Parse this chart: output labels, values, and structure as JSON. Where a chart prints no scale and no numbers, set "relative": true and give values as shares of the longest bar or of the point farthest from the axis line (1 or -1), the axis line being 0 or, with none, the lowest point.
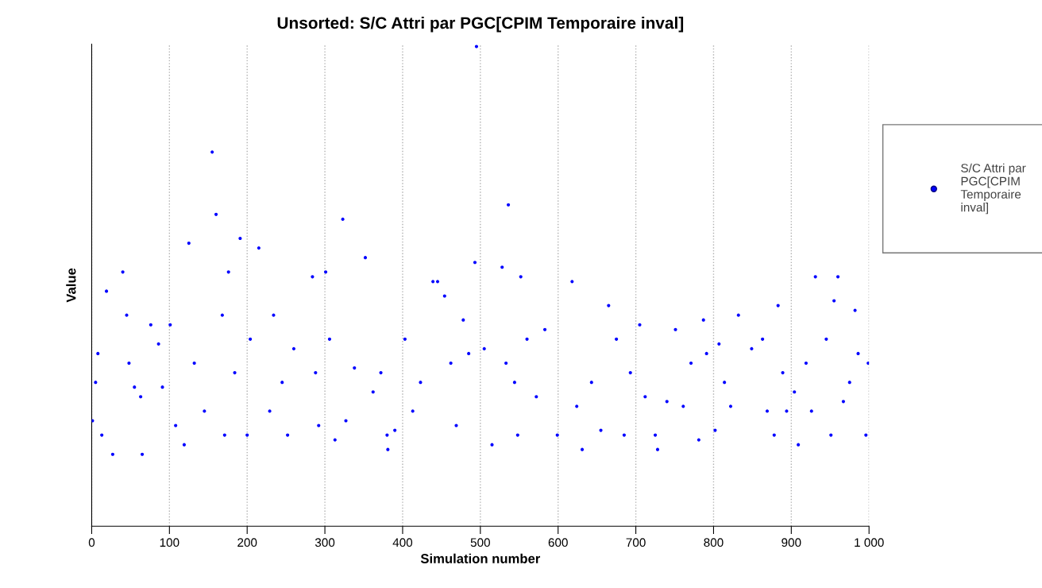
{
  "chart_data": {
    "type": "scatter",
    "title": "Unsorted: S/C Attri par PGC[CPIM Temporaire inval]",
    "xlabel": "Simulation number",
    "ylabel": "Value",
    "relative": true,
    "xlim": [
      0,
      1000
    ],
    "xticks": [
      0,
      100,
      200,
      300,
      400,
      500,
      600,
      700,
      800,
      900,
      {
        "value": 1000,
        "label": "1 000"
      }
    ],
    "grid": "x",
    "legend": "right",
    "marker": "circle",
    "series": [
      {
        "name": "S/C Attri par PGC[CPIM Temporaire inval]",
        "color": "#0000ff",
        "x": [
          1,
          5,
          8,
          13,
          19,
          27,
          40,
          45,
          48,
          55,
          63,
          65,
          76,
          86,
          91,
          101,
          108,
          119,
          125,
          132,
          145,
          155,
          160,
          168,
          171,
          176,
          184,
          191,
          200,
          204,
          215,
          229,
          234,
          245,
          252,
          260,
          284,
          288,
          292,
          301,
          306,
          313,
          323,
          327,
          338,
          352,
          362,
          372,
          380,
          381,
          390,
          403,
          413,
          423,
          439,
          445,
          454,
          462,
          469,
          478,
          485,
          493,
          495,
          505,
          515,
          528,
          533,
          536,
          544,
          548,
          552,
          560,
          572,
          583,
          599,
          618,
          624,
          631,
          643,
          655,
          665,
          675,
          685,
          693,
          705,
          712,
          725,
          728,
          740,
          751,
          761,
          771,
          781,
          787,
          791,
          802,
          807,
          814,
          822,
          832,
          849,
          863,
          869,
          878,
          883,
          889,
          894,
          904,
          909,
          919,
          926,
          931,
          945,
          951,
          955,
          960,
          967,
          975,
          982,
          986,
          996,
          999
        ],
        "values": [
          0.22,
          0.3,
          0.36,
          0.19,
          0.49,
          0.15,
          0.53,
          0.44,
          0.34,
          0.29,
          0.27,
          0.15,
          0.42,
          0.38,
          0.29,
          0.42,
          0.21,
          0.17,
          0.59,
          0.34,
          0.24,
          0.78,
          0.65,
          0.44,
          0.19,
          0.53,
          0.32,
          0.6,
          0.19,
          0.39,
          0.58,
          0.24,
          0.44,
          0.3,
          0.19,
          0.37,
          0.52,
          0.32,
          0.21,
          0.53,
          0.39,
          0.18,
          0.64,
          0.22,
          0.33,
          0.56,
          0.28,
          0.32,
          0.19,
          0.16,
          0.2,
          0.39,
          0.24,
          0.3,
          0.51,
          0.51,
          0.48,
          0.34,
          0.21,
          0.43,
          0.36,
          0.55,
          1.0,
          0.37,
          0.17,
          0.54,
          0.34,
          0.67,
          0.3,
          0.19,
          0.52,
          0.39,
          0.27,
          0.41,
          0.19,
          0.51,
          0.25,
          0.16,
          0.3,
          0.2,
          0.46,
          0.39,
          0.19,
          0.32,
          0.42,
          0.27,
          0.19,
          0.16,
          0.26,
          0.41,
          0.25,
          0.34,
          0.18,
          0.43,
          0.36,
          0.2,
          0.38,
          0.3,
          0.25,
          0.44,
          0.37,
          0.39,
          0.24,
          0.19,
          0.46,
          0.32,
          0.24,
          0.28,
          0.17,
          0.34,
          0.24,
          0.52,
          0.39,
          0.19,
          0.47,
          0.52,
          0.26,
          0.3,
          0.45,
          0.36,
          0.19,
          0.34
        ]
      }
    ]
  }
}
